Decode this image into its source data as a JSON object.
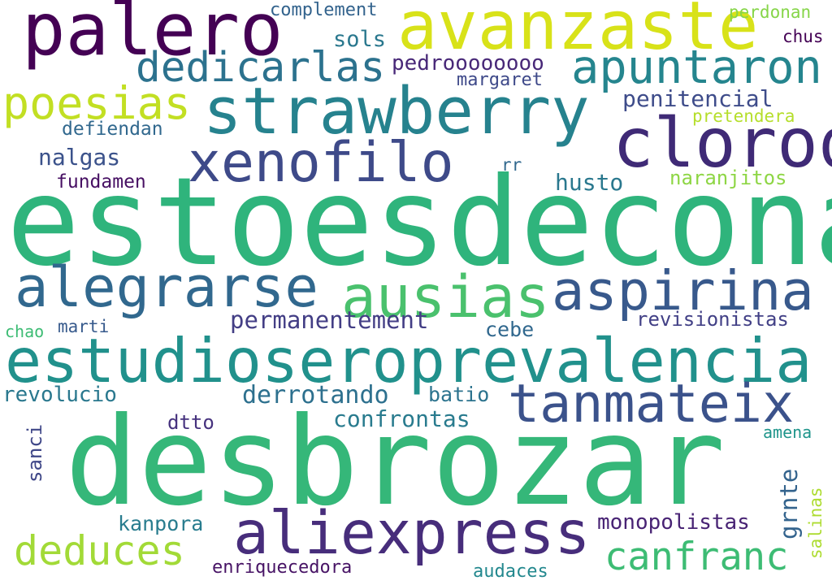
{
  "words": [
    {
      "text": "estoesdecona",
      "color": "#2fb47c"
    },
    {
      "text": "desbrozar",
      "color": "#35b779"
    },
    {
      "text": "estudioseroprevalencia",
      "color": "#21918c"
    },
    {
      "text": "avanzaste",
      "color": "#d8e219"
    },
    {
      "text": "palero",
      "color": "#440154"
    },
    {
      "text": "strawberry",
      "color": "#26828e"
    },
    {
      "text": "cloroq",
      "color": "#3f2a76"
    },
    {
      "text": "xenofilo",
      "color": "#3e4a89"
    },
    {
      "text": "alegrarse",
      "color": "#31688e"
    },
    {
      "text": "ausias",
      "color": "#4ac16d"
    },
    {
      "text": "aspirina",
      "color": "#38598c"
    },
    {
      "text": "aliexpress",
      "color": "#472d7b"
    },
    {
      "text": "tanmateix",
      "color": "#3b528b"
    },
    {
      "text": "apuntaron",
      "color": "#25858e"
    },
    {
      "text": "dedicarlas",
      "color": "#2c728e"
    },
    {
      "text": "poesias",
      "color": "#c2df23"
    },
    {
      "text": "deduces",
      "color": "#a2da37"
    },
    {
      "text": "canfranc",
      "color": "#3dbc74"
    },
    {
      "text": "pedroooooooo",
      "color": "#482878"
    },
    {
      "text": "penitencial",
      "color": "#3e4c8a"
    },
    {
      "text": "permanentement",
      "color": "#433e85"
    },
    {
      "text": "revisionistas",
      "color": "#424086"
    },
    {
      "text": "derrotando",
      "color": "#2d708e"
    },
    {
      "text": "confrontas",
      "color": "#297b8e"
    },
    {
      "text": "monopolistas",
      "color": "#482374"
    },
    {
      "text": "naranjitos",
      "color": "#8ed645"
    },
    {
      "text": "nalgas",
      "color": "#3b528b"
    },
    {
      "text": "husto",
      "color": "#2a788e"
    },
    {
      "text": "sols",
      "color": "#2a788e"
    },
    {
      "text": "margaret",
      "color": "#3e4989"
    },
    {
      "text": "complement",
      "color": "#33638d"
    },
    {
      "text": "perdonan",
      "color": "#86d549"
    },
    {
      "text": "chus",
      "color": "#440154"
    },
    {
      "text": "pretendera",
      "color": "#b5de2b"
    },
    {
      "text": "defiendan",
      "color": "#31688e"
    },
    {
      "text": "fundamen",
      "color": "#471063"
    },
    {
      "text": "rr",
      "color": "#31688e"
    },
    {
      "text": "revolucio",
      "color": "#2a788e"
    },
    {
      "text": "batio",
      "color": "#2c738e"
    },
    {
      "text": "cebe",
      "color": "#31688e"
    },
    {
      "text": "marti",
      "color": "#375a8c"
    },
    {
      "text": "chao",
      "color": "#3dbc74"
    },
    {
      "text": "dtto",
      "color": "#46327e"
    },
    {
      "text": "kanpora",
      "color": "#287c8e"
    },
    {
      "text": "enriquecedora",
      "color": "#471365"
    },
    {
      "text": "audaces",
      "color": "#23888e"
    },
    {
      "text": "amena",
      "color": "#1f958b"
    },
    {
      "text": "sanci",
      "color": "#3f4788"
    },
    {
      "text": "grnte",
      "color": "#33638d"
    },
    {
      "text": "salinas",
      "color": "#addc30"
    }
  ]
}
